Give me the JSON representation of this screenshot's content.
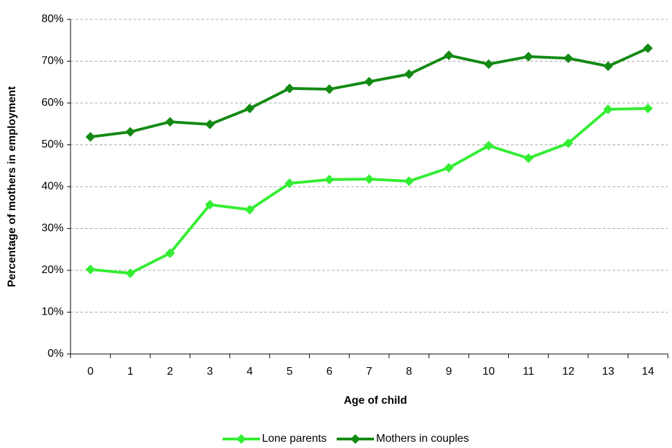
{
  "chart_data": {
    "type": "line",
    "x_label": "Age of child",
    "y_label": "Percentage of mothers in employment",
    "categories": [
      "0",
      "1",
      "2",
      "3",
      "4",
      "5",
      "6",
      "7",
      "8",
      "9",
      "10",
      "11",
      "12",
      "13",
      "14"
    ],
    "series": [
      {
        "name": "Lone parents",
        "color": "#33ee33",
        "values": [
          20.2,
          19.3,
          24.1,
          35.7,
          34.5,
          40.8,
          41.7,
          41.8,
          41.3,
          44.5,
          49.8,
          46.8,
          50.4,
          58.5,
          58.7
        ]
      },
      {
        "name": "Mothers in couples",
        "color": "#138a13",
        "values": [
          51.9,
          53.1,
          55.5,
          54.9,
          58.7,
          63.5,
          63.3,
          65.1,
          66.9,
          71.4,
          69.3,
          71.1,
          70.7,
          68.8,
          73.1
        ]
      }
    ],
    "ylim": [
      0,
      80
    ],
    "yticks": [
      {
        "value": 0,
        "label": "0%"
      },
      {
        "value": 10,
        "label": "10%"
      },
      {
        "value": 20,
        "label": "20%"
      },
      {
        "value": 30,
        "label": "30%"
      },
      {
        "value": 40,
        "label": "40%"
      },
      {
        "value": 50,
        "label": "50%"
      },
      {
        "value": 60,
        "label": "60%"
      },
      {
        "value": 70,
        "label": "70%"
      },
      {
        "value": 80,
        "label": "80%"
      }
    ],
    "grid": true,
    "legend": "bottom"
  }
}
